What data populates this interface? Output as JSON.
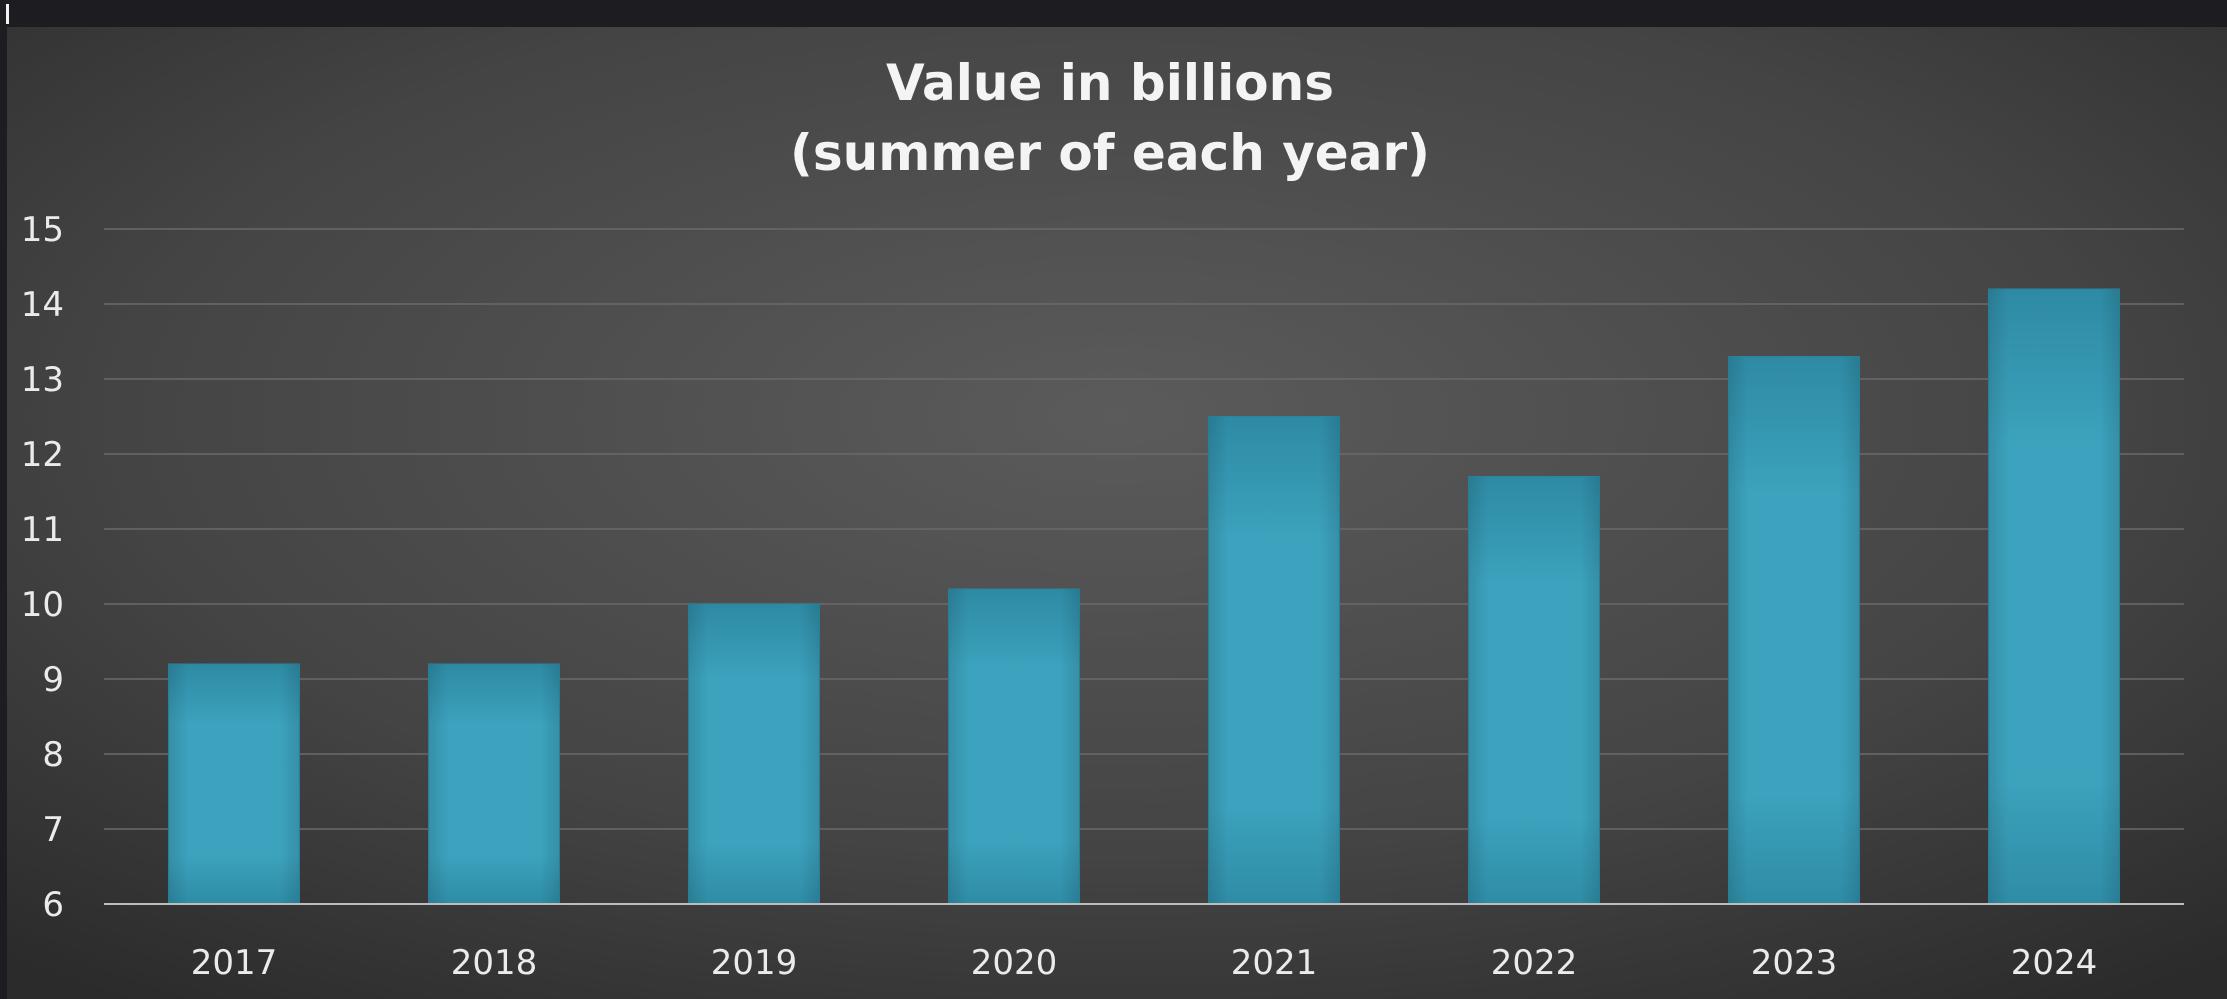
{
  "chart_data": {
    "type": "bar",
    "title": "Value in billions",
    "subtitle": "(summer of each year)",
    "xlabel": "",
    "ylabel": "",
    "categories": [
      "2017",
      "2018",
      "2019",
      "2020",
      "2021",
      "2022",
      "2023",
      "2024"
    ],
    "values": [
      9.2,
      9.2,
      10.0,
      10.2,
      12.5,
      11.7,
      13.3,
      14.2
    ],
    "ylim": [
      6,
      15
    ],
    "yticks": [
      "6",
      "7",
      "8",
      "9",
      "10",
      "11",
      "12",
      "13",
      "14",
      "15"
    ],
    "grid": true,
    "legend": "none",
    "colors": {
      "bar": "#3a9fba",
      "bar_edge": "#2a86a0",
      "background_center": "#5a5a5a",
      "background_edge": "#2c2c2c",
      "gridline": "#6a6a6a",
      "axis": "#bdbdbd",
      "text": "#ebebeb"
    }
  }
}
